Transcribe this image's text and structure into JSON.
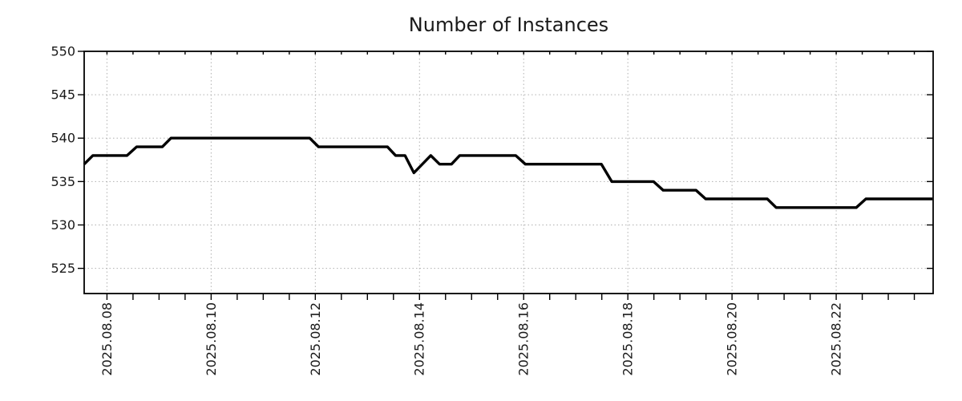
{
  "page": {
    "background": "#ffffff"
  },
  "chart_data": {
    "type": "line",
    "title": "Number of Instances",
    "legend": "none",
    "grid": {
      "style": "dotted",
      "color": "#b0b0b0",
      "x_gridlines_on_major_ticks_only": true
    },
    "axis_color": "#000000",
    "line_color": "#000000",
    "label_color": "#1a1a1a",
    "ylim": [
      522.1,
      550
    ],
    "yticks": [
      525,
      530,
      535,
      540,
      545,
      550
    ],
    "xlim": [
      "2025-08-07T13:30:00",
      "2025-08-23T20:40:00"
    ],
    "x_minor_ticks_per_major_interval": 4,
    "x_major_ticks": [
      {
        "t": "2025-08-08T00:00:00",
        "label": "2025.08.08"
      },
      {
        "t": "2025-08-10T00:00:00",
        "label": "2025.08.10"
      },
      {
        "t": "2025-08-12T00:00:00",
        "label": "2025.08.12"
      },
      {
        "t": "2025-08-14T00:00:00",
        "label": "2025.08.14"
      },
      {
        "t": "2025-08-16T00:00:00",
        "label": "2025.08.16"
      },
      {
        "t": "2025-08-18T00:00:00",
        "label": "2025.08.18"
      },
      {
        "t": "2025-08-20T00:00:00",
        "label": "2025.08.20"
      },
      {
        "t": "2025-08-22T00:00:00",
        "label": "2025.08.22"
      }
    ],
    "series": [
      {
        "name": "Number of Instances",
        "color": "#000000",
        "points": [
          [
            "2025-08-07T13:30:00",
            537
          ],
          [
            "2025-08-07T17:30:00",
            538
          ],
          [
            "2025-08-08T09:15:00",
            538
          ],
          [
            "2025-08-08T13:40:00",
            539
          ],
          [
            "2025-08-09T01:30:00",
            539
          ],
          [
            "2025-08-09T05:30:00",
            540
          ],
          [
            "2025-08-11T21:25:00",
            540
          ],
          [
            "2025-08-12T01:30:00",
            539
          ],
          [
            "2025-08-13T09:15:00",
            539
          ],
          [
            "2025-08-13T13:00:00",
            538
          ],
          [
            "2025-08-13T17:20:00",
            538
          ],
          [
            "2025-08-13T21:25:00",
            536
          ],
          [
            "2025-08-14T05:10:00",
            538
          ],
          [
            "2025-08-14T09:15:00",
            537
          ],
          [
            "2025-08-14T14:45:00",
            537
          ],
          [
            "2025-08-14T18:30:00",
            538
          ],
          [
            "2025-08-15T20:20:00",
            538
          ],
          [
            "2025-08-16T00:45:00",
            537
          ],
          [
            "2025-08-17T11:50:00",
            537
          ],
          [
            "2025-08-17T16:35:00",
            535
          ],
          [
            "2025-08-18T11:50:00",
            535
          ],
          [
            "2025-08-18T16:15:00",
            534
          ],
          [
            "2025-08-19T07:25:00",
            534
          ],
          [
            "2025-08-19T11:50:00",
            533
          ],
          [
            "2025-08-20T16:15:00",
            533
          ],
          [
            "2025-08-20T20:20:00",
            532
          ],
          [
            "2025-08-22T09:15:00",
            532
          ],
          [
            "2025-08-22T13:40:00",
            533
          ],
          [
            "2025-08-23T20:20:00",
            533
          ]
        ]
      }
    ]
  }
}
